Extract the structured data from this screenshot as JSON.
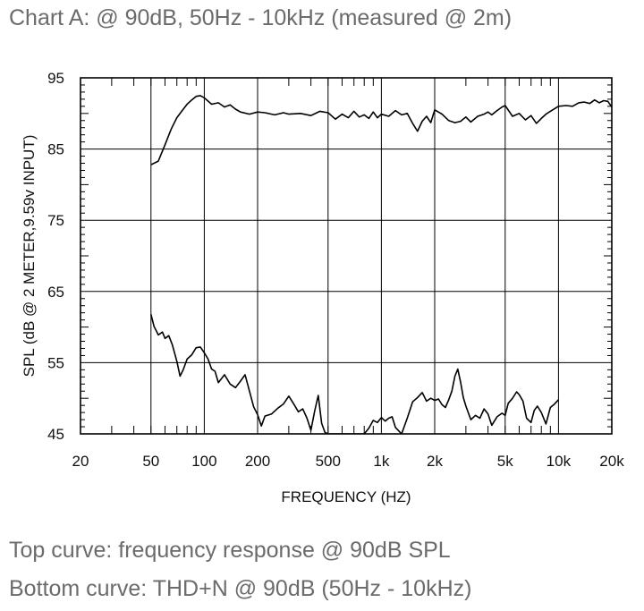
{
  "header": {
    "title": "Chart A: @ 90dB, 50Hz - 10kHz (measured @ 2m)"
  },
  "footer": {
    "note1": "Top curve: frequency response @ 90dB SPL",
    "note2": "Bottom curve: THD+N @ 90dB (50Hz - 10kHz)"
  },
  "chart_data": {
    "type": "line",
    "xlabel": "FREQUENCY  (HZ)",
    "ylabel": "SPL (dB @ 2 METER,9.59v  INPUT)",
    "xscale": "log",
    "xlim": [
      20,
      20000
    ],
    "ylim": [
      45,
      95
    ],
    "x_ticks": [
      20,
      50,
      100,
      200,
      500,
      1000,
      2000,
      5000,
      10000,
      20000
    ],
    "x_tick_labels": [
      "20",
      "50",
      "100",
      "200",
      "500",
      "1k",
      "2k",
      "5k",
      "10k",
      "20k"
    ],
    "y_ticks": [
      45,
      55,
      65,
      75,
      85,
      95
    ],
    "y_tick_labels": [
      "45",
      "55",
      "65",
      "75",
      "85",
      "95"
    ],
    "grid": true,
    "series": [
      {
        "x": [
          50,
          55,
          60,
          65,
          70,
          75,
          80,
          85,
          90,
          95,
          100,
          110,
          120,
          130,
          140,
          150,
          160,
          180,
          200,
          220,
          250,
          280,
          300,
          350,
          400,
          450,
          500,
          550,
          600,
          650,
          700,
          750,
          800,
          850,
          900,
          950,
          1000,
          1100,
          1200,
          1300,
          1400,
          1500,
          1600,
          1700,
          1800,
          1900,
          2000,
          2200,
          2400,
          2600,
          2800,
          3000,
          3200,
          3500,
          3800,
          4000,
          4200,
          4500,
          4800,
          5000,
          5500,
          6000,
          6500,
          7000,
          7500,
          8000,
          8500,
          9000,
          10000,
          11000,
          12000,
          13000,
          14000,
          15000,
          16000,
          17000,
          18000,
          19000,
          20000
        ],
        "values": [
          82.8,
          83.3,
          85.6,
          87.8,
          89.4,
          90.4,
          91.3,
          91.9,
          92.4,
          92.5,
          92.2,
          91.3,
          91.5,
          90.9,
          91.2,
          90.6,
          90.2,
          89.9,
          90.2,
          90.1,
          89.8,
          90.1,
          89.9,
          90.0,
          89.7,
          90.3,
          90.1,
          89.2,
          89.9,
          89.4,
          90.3,
          89.5,
          89.8,
          89.3,
          90.2,
          89.4,
          89.9,
          89.6,
          90.4,
          89.8,
          90.0,
          88.6,
          87.5,
          88.9,
          89.6,
          88.7,
          90.5,
          89.9,
          89.0,
          88.7,
          88.9,
          89.5,
          88.8,
          89.6,
          89.9,
          90.2,
          89.8,
          90.4,
          90.9,
          91.1,
          89.6,
          90.0,
          89.1,
          89.7,
          88.6,
          89.3,
          89.9,
          90.3,
          91.0,
          91.1,
          91.0,
          91.5,
          91.6,
          91.4,
          91.9,
          91.5,
          91.8,
          91.7,
          90.9
        ]
      },
      {
        "x": [
          50,
          52,
          55,
          58,
          60,
          63,
          66,
          70,
          73,
          76,
          80,
          85,
          90,
          95,
          100,
          105,
          110,
          115,
          120,
          130,
          140,
          150,
          160,
          170,
          180,
          190,
          200,
          210,
          220,
          240,
          260,
          280,
          300,
          320,
          340,
          360,
          380,
          400,
          420,
          440,
          460,
          480,
          500,
          800,
          850,
          900,
          950,
          1000,
          1050,
          1100,
          1150,
          1200,
          1300,
          1400,
          1500,
          1600,
          1700,
          1800,
          1900,
          2000,
          2100,
          2200,
          2300,
          2400,
          2500,
          2600,
          2700,
          2800,
          2900,
          3000,
          3200,
          3400,
          3600,
          3800,
          4000,
          4200,
          4500,
          4800,
          5000,
          5200,
          5500,
          5800,
          6000,
          6300,
          6600,
          7000,
          7300,
          7600,
          8000,
          8500,
          9000,
          9500,
          10000
        ],
        "values": [
          61.8,
          60.1,
          58.9,
          59.3,
          58.4,
          58.8,
          57.5,
          55.2,
          53.1,
          54.0,
          55.5,
          56.1,
          57.1,
          57.2,
          56.4,
          55.5,
          54.1,
          53.8,
          52.2,
          53.3,
          52.0,
          51.5,
          52.4,
          53.3,
          51.0,
          48.8,
          47.7,
          46.1,
          47.5,
          47.8,
          48.6,
          49.2,
          50.3,
          49.2,
          48.1,
          48.5,
          47.2,
          45.5,
          48.2,
          50.4,
          46.5,
          45.2,
          45.0,
          45.0,
          45.8,
          46.9,
          46.6,
          47.3,
          46.8,
          47.2,
          47.4,
          45.9,
          45.0,
          47.2,
          49.5,
          50.1,
          50.8,
          49.6,
          50.0,
          49.7,
          49.9,
          49.1,
          48.7,
          49.8,
          51.0,
          53.1,
          54.1,
          52.3,
          50.1,
          48.9,
          47.0,
          47.6,
          47.2,
          48.5,
          47.8,
          46.2,
          47.4,
          47.9,
          47.6,
          49.3,
          50.0,
          50.9,
          50.5,
          49.6,
          47.2,
          46.6,
          48.3,
          48.9,
          48.0,
          46.4,
          48.7,
          49.2,
          49.8
        ]
      }
    ]
  }
}
